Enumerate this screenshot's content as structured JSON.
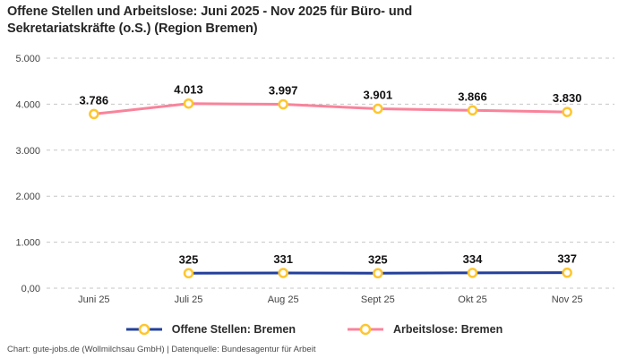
{
  "title": "Offene Stellen und Arbeitslose: Juni 2025 - Nov 2025 für Büro- und Sekretariatskräfte (o.S.) (Region Bremen)",
  "footer": "Chart: gute-jobs.de (Wollmilchsau GmbH) | Datenquelle: Bundesagentur für Arbeit",
  "colors": {
    "title_text": "#262626",
    "tick_text": "#444444",
    "data_label_text": "#111111",
    "gridline": "#c6c6c6",
    "marker_ring": "#fec62f",
    "marker_fill": "#ffffff",
    "series_offene_stellen": "#23409c",
    "series_arbeitslose": "#f9839b"
  },
  "chart_data": {
    "type": "line",
    "title": "Offene Stellen und Arbeitslose: Juni 2025 - Nov 2025 für Büro- und Sekretariatskräfte (o.S.) (Region Bremen)",
    "categories": [
      "Juni 25",
      "Juli 25",
      "Aug 25",
      "Sept 25",
      "Okt 25",
      "Nov 25"
    ],
    "series": [
      {
        "name": "Offene Stellen: Bremen",
        "color": "#23409c",
        "values": [
          null,
          325,
          331,
          325,
          334,
          337
        ],
        "labels": [
          "",
          "325",
          "331",
          "325",
          "334",
          "337"
        ]
      },
      {
        "name": "Arbeitslose: Bremen",
        "color": "#f9839b",
        "values": [
          3786,
          4013,
          3997,
          3901,
          3866,
          3830
        ],
        "labels": [
          "3.786",
          "4.013",
          "3.997",
          "3.901",
          "3.866",
          "3.830"
        ]
      }
    ],
    "xlabel": "",
    "ylabel": "",
    "ylim": [
      0,
      5000
    ],
    "yticks": [
      {
        "value": 5000,
        "label": "5.000"
      },
      {
        "value": 4000,
        "label": "4.000"
      },
      {
        "value": 3000,
        "label": "3.000"
      },
      {
        "value": 2000,
        "label": "2.000"
      },
      {
        "value": 1000,
        "label": "1.000"
      },
      {
        "value": 0,
        "label": "0,00"
      }
    ],
    "grid": true,
    "grid_style": "dashed",
    "legend_position": "bottom",
    "marker": {
      "shape": "circle",
      "ring_color": "#fec62f",
      "fill_color": "#ffffff"
    }
  }
}
